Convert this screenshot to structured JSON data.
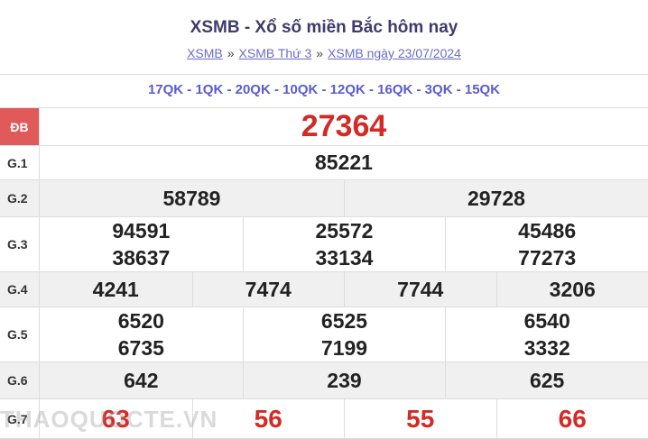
{
  "header": {
    "title": "XSMB - Xổ số miền Bắc hôm nay",
    "breadcrumbs": [
      "XSMB",
      "XSMB Thứ 3",
      "XSMB ngày 23/07/2024"
    ],
    "separator": "»"
  },
  "codes": "17QK - 1QK - 20QK - 10QK - 12QK - 16QK - 3QK - 15QK",
  "rows": [
    {
      "label": "ĐB",
      "numbers": [
        "27364"
      ]
    },
    {
      "label": "G.1",
      "numbers": [
        "85221"
      ]
    },
    {
      "label": "G.2",
      "numbers": [
        "58789",
        "29728"
      ]
    },
    {
      "label": "G.3",
      "numbers": [
        "94591",
        "25572",
        "45486",
        "38637",
        "33134",
        "77273"
      ]
    },
    {
      "label": "G.4",
      "numbers": [
        "4241",
        "7474",
        "7744",
        "3206"
      ]
    },
    {
      "label": "G.5",
      "numbers": [
        "6520",
        "6525",
        "6540",
        "6735",
        "7199",
        "3332"
      ]
    },
    {
      "label": "G.6",
      "numbers": [
        "642",
        "239",
        "625"
      ]
    },
    {
      "label": "G.7",
      "numbers": [
        "63",
        "56",
        "55",
        "66"
      ]
    }
  ],
  "watermark": "THAOQUOCTE.VN"
}
